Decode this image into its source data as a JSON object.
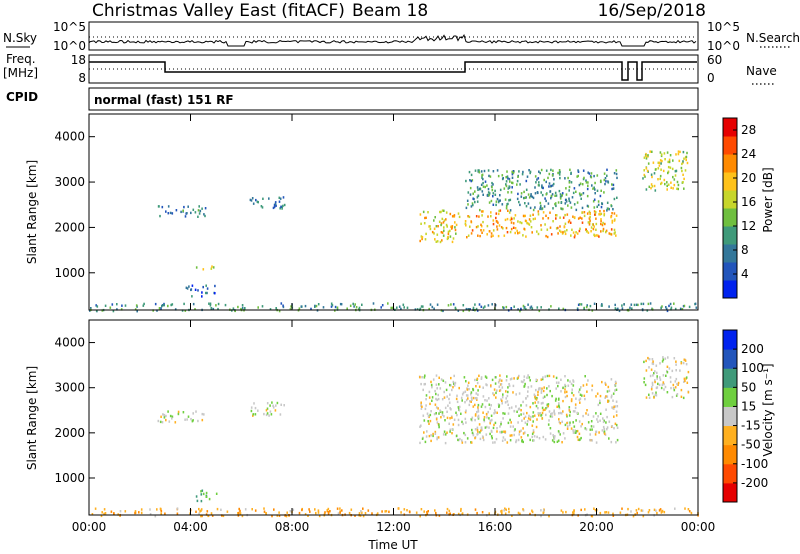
{
  "header": {
    "title": "Christmas Valley East (fitACF)",
    "beam": "Beam 18",
    "date": "16/Sep/2018"
  },
  "top_strip": {
    "nsky_label": "N.Sky",
    "nsky_ticks": [
      "10^5",
      "10^0"
    ],
    "nsearch_label": "N.Search",
    "nsearch_ticks": [
      "10^5",
      "10^0"
    ],
    "freq_label_1": "Freq.",
    "freq_label_2": "[MHz]",
    "freq_ticks": [
      "18",
      "8"
    ],
    "nave_label": "Nave",
    "nave_ticks": [
      "60",
      "0"
    ],
    "cpid_label": "CPID",
    "cpid_text": "normal (fast) 151 RF"
  },
  "chart_data": [
    {
      "type": "heatmap",
      "ylabel": "Slant Range [km]",
      "y_ticks": [
        "1000",
        "2000",
        "3000",
        "4000"
      ],
      "y_tick_values": [
        1000,
        2000,
        3000,
        4000
      ],
      "ylim": [
        180,
        4500
      ],
      "xlim": [
        0,
        24
      ],
      "colorbar": {
        "label": "Power [dB]",
        "ticks": [
          "4",
          "8",
          "12",
          "16",
          "20",
          "24",
          "28"
        ],
        "tick_values": [
          4,
          8,
          12,
          16,
          20,
          24,
          28
        ],
        "range": [
          0,
          30
        ],
        "colors": [
          "#0022ee",
          "#2255bb",
          "#33779a",
          "#3f9a7a",
          "#6fbf3f",
          "#c7d62b",
          "#ffc21a",
          "#ff8a00",
          "#ff4a00",
          "#e60000"
        ]
      },
      "echo_regions": [
        {
          "t_start": 0.0,
          "t_end": 24.0,
          "range_start": 180,
          "range_end": 350,
          "value": 10
        },
        {
          "t_start": 3.8,
          "t_end": 5.0,
          "range_start": 500,
          "range_end": 750,
          "value": 6
        },
        {
          "t_start": 4.2,
          "t_end": 5.0,
          "range_start": 1100,
          "range_end": 1200,
          "value": 18
        },
        {
          "t_start": 2.7,
          "t_end": 4.6,
          "range_start": 2250,
          "range_end": 2500,
          "value": 8
        },
        {
          "t_start": 6.3,
          "t_end": 7.7,
          "range_start": 2400,
          "range_end": 2700,
          "value": 8
        },
        {
          "t_start": 13.0,
          "t_end": 14.6,
          "range_start": 1700,
          "range_end": 2400,
          "value": 18
        },
        {
          "t_start": 14.8,
          "t_end": 20.8,
          "range_start": 1800,
          "range_end": 2400,
          "value": 20
        },
        {
          "t_start": 14.8,
          "t_end": 20.8,
          "range_start": 2400,
          "range_end": 3300,
          "value": 10
        },
        {
          "t_start": 21.8,
          "t_end": 23.6,
          "range_start": 2800,
          "range_end": 3700,
          "value": 16
        }
      ]
    },
    {
      "type": "heatmap",
      "ylabel": "Slant Range [km]",
      "xlabel": "Time UT",
      "x_ticks": [
        "00:00",
        "04:00",
        "08:00",
        "12:00",
        "16:00",
        "20:00",
        "00:00"
      ],
      "x_tick_values": [
        0,
        4,
        8,
        12,
        16,
        20,
        24
      ],
      "y_ticks": [
        "1000",
        "2000",
        "3000",
        "4000"
      ],
      "y_tick_values": [
        1000,
        2000,
        3000,
        4000
      ],
      "ylim": [
        180,
        4500
      ],
      "xlim": [
        0,
        24
      ],
      "colorbar": {
        "label": "Velocity [m s⁻¹]",
        "ticks": [
          "-200",
          "-100",
          "-50",
          "-15",
          "15",
          "50",
          "100",
          "200"
        ],
        "colors": [
          "#e60000",
          "#ff4a00",
          "#ff8a00",
          "#ffb020",
          "#c8c8c8",
          "#6fcf3f",
          "#3f9a7a",
          "#2255bb",
          "#0022ee"
        ]
      },
      "echo_regions": [
        {
          "t_start": 0.0,
          "t_end": 24.0,
          "range_start": 180,
          "range_end": 350,
          "value": -40
        },
        {
          "t_start": 4.2,
          "t_end": 5.0,
          "range_start": 500,
          "range_end": 750,
          "value": 50
        },
        {
          "t_start": 2.7,
          "t_end": 4.6,
          "range_start": 2250,
          "range_end": 2500,
          "value": 0
        },
        {
          "t_start": 6.3,
          "t_end": 7.7,
          "range_start": 2400,
          "range_end": 2700,
          "value": 0
        },
        {
          "t_start": 13.0,
          "t_end": 20.8,
          "range_start": 1800,
          "range_end": 3300,
          "value": 0
        },
        {
          "t_start": 21.8,
          "t_end": 23.6,
          "range_start": 2800,
          "range_end": 3700,
          "value": 0
        }
      ]
    }
  ]
}
